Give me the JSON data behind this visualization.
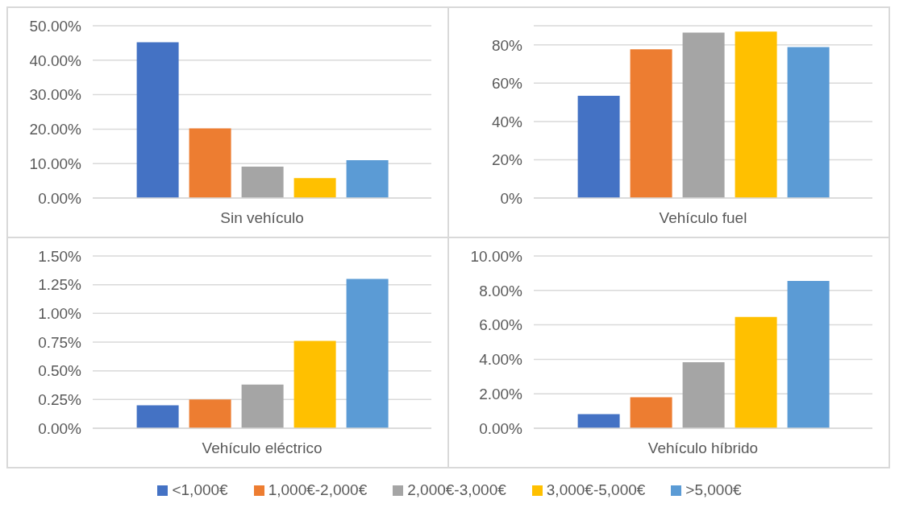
{
  "chart_data": [
    {
      "type": "bar",
      "categories": [
        "Sin vehículo"
      ],
      "ylim": [
        0,
        50
      ],
      "yticks": [
        {
          "value": 0,
          "label": "0.00%"
        },
        {
          "value": 10,
          "label": "10.00%"
        },
        {
          "value": 20,
          "label": "20.00%"
        },
        {
          "value": 30,
          "label": "30.00%"
        },
        {
          "value": 40,
          "label": "40.00%"
        },
        {
          "value": 50,
          "label": "50.00%"
        }
      ],
      "grid": "y",
      "series": [
        {
          "color": "#4472c4",
          "values": [
            45.2
          ]
        },
        {
          "color": "#ed7d31",
          "values": [
            20.2
          ]
        },
        {
          "color": "#a5a5a5",
          "values": [
            9.1
          ]
        },
        {
          "color": "#ffc000",
          "values": [
            5.8
          ]
        },
        {
          "color": "#5b9bd5",
          "values": [
            11.0
          ]
        }
      ]
    },
    {
      "type": "bar",
      "categories": [
        "Vehículo fuel"
      ],
      "ylim": [
        0,
        90
      ],
      "yticks": [
        {
          "value": 0,
          "label": "0%"
        },
        {
          "value": 20,
          "label": "20%"
        },
        {
          "value": 40,
          "label": "40%"
        },
        {
          "value": 60,
          "label": "60%"
        },
        {
          "value": 80,
          "label": "80%"
        }
      ],
      "grid": "y",
      "series": [
        {
          "color": "#4472c4",
          "values": [
            53.4
          ]
        },
        {
          "color": "#ed7d31",
          "values": [
            77.7
          ]
        },
        {
          "color": "#a5a5a5",
          "values": [
            86.4
          ]
        },
        {
          "color": "#ffc000",
          "values": [
            86.9
          ]
        },
        {
          "color": "#5b9bd5",
          "values": [
            78.9
          ]
        }
      ]
    },
    {
      "type": "bar",
      "categories": [
        "Vehículo eléctrico"
      ],
      "ylim": [
        0,
        1.5
      ],
      "yticks": [
        {
          "value": 0,
          "label": "0.00%"
        },
        {
          "value": 0.25,
          "label": "0.25%"
        },
        {
          "value": 0.5,
          "label": "0.50%"
        },
        {
          "value": 0.75,
          "label": "0.75%"
        },
        {
          "value": 1,
          "label": "1.00%"
        },
        {
          "value": 1.25,
          "label": "1.25%"
        },
        {
          "value": 1.5,
          "label": "1.50%"
        }
      ],
      "grid": "y",
      "series": [
        {
          "color": "#4472c4",
          "values": [
            0.2
          ]
        },
        {
          "color": "#ed7d31",
          "values": [
            0.25
          ]
        },
        {
          "color": "#a5a5a5",
          "values": [
            0.38
          ]
        },
        {
          "color": "#ffc000",
          "values": [
            0.76
          ]
        },
        {
          "color": "#5b9bd5",
          "values": [
            1.3
          ]
        }
      ]
    },
    {
      "type": "bar",
      "categories": [
        "Vehículo híbrido"
      ],
      "ylim": [
        0,
        10
      ],
      "yticks": [
        {
          "value": 0,
          "label": "0.00%"
        },
        {
          "value": 2,
          "label": "2.00%"
        },
        {
          "value": 4,
          "label": "4.00%"
        },
        {
          "value": 6,
          "label": "6.00%"
        },
        {
          "value": 8,
          "label": "8.00%"
        },
        {
          "value": 10,
          "label": "10.00%"
        }
      ],
      "grid": "y",
      "legend": "bottom",
      "series": [
        {
          "name": "<1,000€",
          "color": "#4472c4",
          "values": [
            0.82
          ]
        },
        {
          "name": "1,000€-2,000€",
          "color": "#ed7d31",
          "values": [
            1.8
          ]
        },
        {
          "name": "2,000€-3,000€",
          "color": "#a5a5a5",
          "values": [
            3.83
          ]
        },
        {
          "name": "3,000€-5,000€",
          "color": "#ffc000",
          "values": [
            6.46
          ]
        },
        {
          "name": ">5,000€",
          "color": "#5b9bd5",
          "values": [
            8.55
          ]
        }
      ]
    }
  ]
}
